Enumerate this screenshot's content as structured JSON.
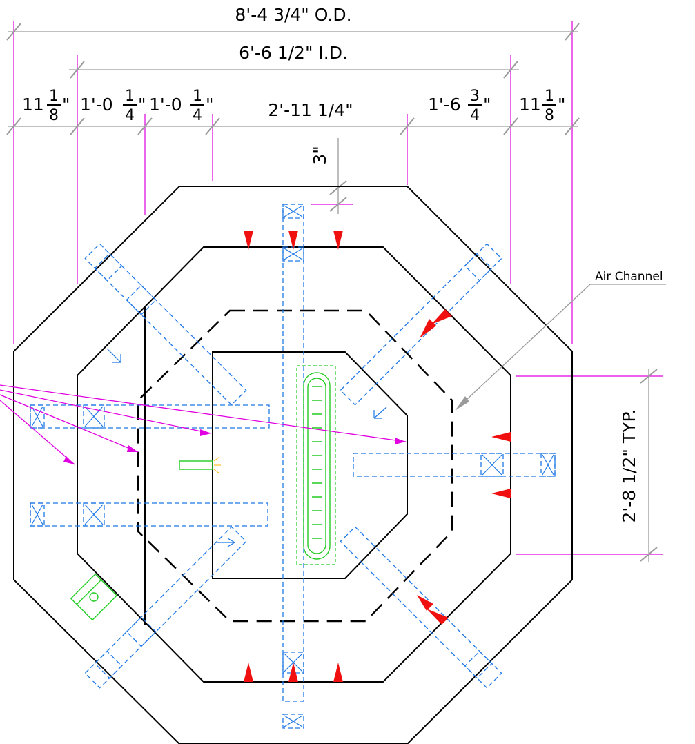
{
  "dimensions": {
    "overall_od": "8'-4 3/4\" O.D.",
    "inner_id": "6'-6 1/2\" I.D.",
    "seg1_whole": "11",
    "seg1_num": "1",
    "seg1_den": "8",
    "seg2_whole": "1'-0",
    "seg2_num": "1",
    "seg2_den": "4",
    "seg3_whole": "1'-0",
    "seg3_num": "1",
    "seg3_den": "4",
    "seg4": "2'-11  1/4\"",
    "seg5_whole": "1'-6",
    "seg5_num": "3",
    "seg5_den": "4",
    "seg6_whole": "11",
    "seg6_num": "1",
    "seg6_den": "8",
    "inch_mark": "\"",
    "top_gap": "3\"",
    "side_typ": "2'-8  1/2\" TYP."
  },
  "labels": {
    "air_channel": "Air Channel"
  },
  "colors": {
    "outline": "#000000",
    "dimension": "#9a9a9a",
    "extension": "#e000e0",
    "blue_parts": "#1e78e6",
    "green_parts": "#22cc22",
    "red_markers": "#f01010"
  }
}
